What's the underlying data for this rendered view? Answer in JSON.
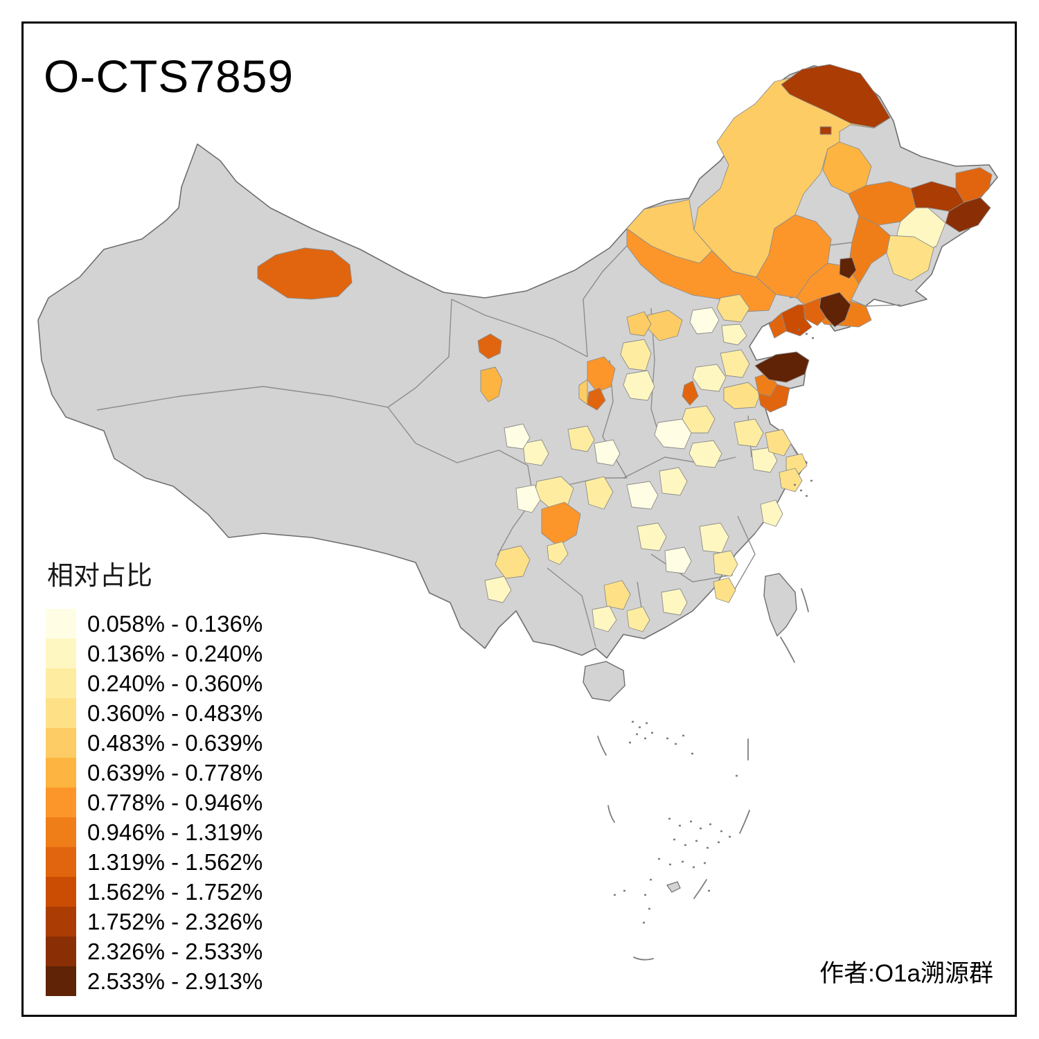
{
  "title": "O-CTS7859",
  "attribution": "作者:O1a溯源群",
  "legend": {
    "title": "相对占比",
    "items": [
      {
        "range": "0.058% - 0.136%",
        "color": "#FFFDE4"
      },
      {
        "range": "0.136% - 0.240%",
        "color": "#FFF7C2"
      },
      {
        "range": "0.240% - 0.360%",
        "color": "#FEEDA1"
      },
      {
        "range": "0.360% - 0.483%",
        "color": "#FEE187"
      },
      {
        "range": "0.483% - 0.639%",
        "color": "#FDCC64"
      },
      {
        "range": "0.639% - 0.778%",
        "color": "#FDB440"
      },
      {
        "range": "0.778% - 0.946%",
        "color": "#FC962B"
      },
      {
        "range": "0.946% - 1.319%",
        "color": "#F07E18"
      },
      {
        "range": "1.319% - 1.562%",
        "color": "#E1650E"
      },
      {
        "range": "1.562% - 1.752%",
        "color": "#CB4D03"
      },
      {
        "range": "1.752% - 2.326%",
        "color": "#AA3C04"
      },
      {
        "range": "2.326% - 2.533%",
        "color": "#8A2F05"
      },
      {
        "range": "2.533% - 2.913%",
        "color": "#602306"
      }
    ]
  },
  "map": {
    "no_data_color": "#D3D3D3",
    "region_border_color": "#8C8C8C",
    "country_outline_color": "#6E6E6E",
    "sea_color": "#FFFFFF"
  }
}
